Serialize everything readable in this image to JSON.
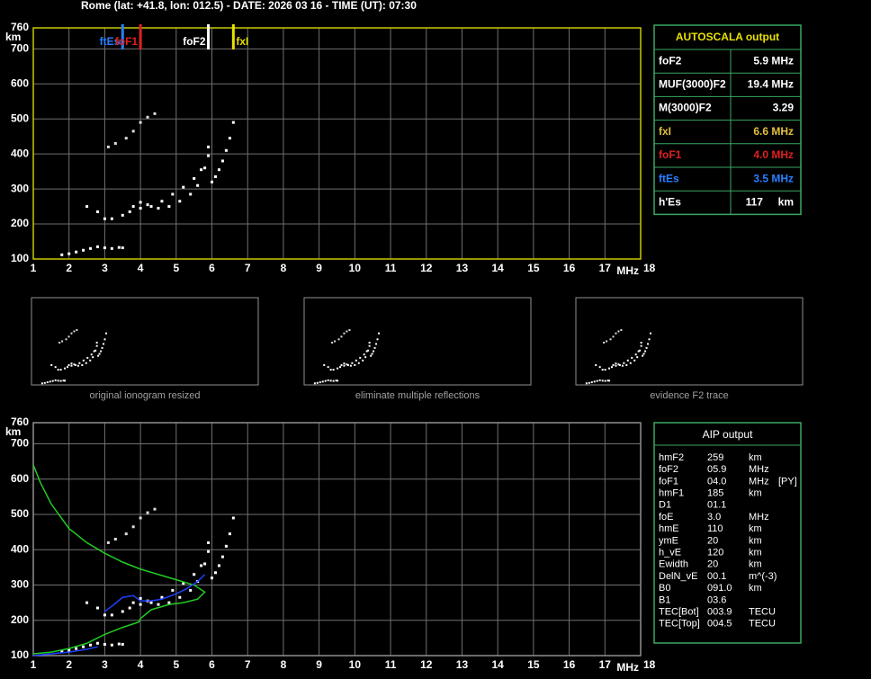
{
  "header": "Rome (lat: +41.8, lon: 012.5) - DATE: 2026 03 16 - TIME (UT): 07:30",
  "chart_data": [
    {
      "type": "scatter",
      "x_label": "MHz",
      "y_label": "km",
      "xlim": [
        1,
        18
      ],
      "ylim": [
        100,
        760
      ],
      "xticks": [
        1,
        2,
        3,
        4,
        5,
        6,
        7,
        8,
        9,
        10,
        11,
        12,
        13,
        14,
        15,
        16,
        17,
        18
      ],
      "yticks": [
        100,
        200,
        300,
        400,
        500,
        600,
        700,
        760
      ],
      "grid": true,
      "frame_color": "#c8c800",
      "markers": [
        {
          "name": "ftEs",
          "value": 3.5,
          "color": "#2a7fff"
        },
        {
          "name": "foF1",
          "value": 4.0,
          "color": "#e02020"
        },
        {
          "name": "foF2",
          "value": 5.9,
          "color": "#ffffff"
        },
        {
          "name": "fxI",
          "value": 6.6,
          "color": "#e8e000"
        }
      ],
      "series": [
        {
          "color": "#ffffff",
          "x": [
            1.8,
            2.0,
            2.2,
            2.4,
            2.6,
            2.8,
            3.0,
            3.2,
            3.4,
            3.5
          ],
          "values": [
            112,
            115,
            120,
            125,
            130,
            135,
            132,
            130,
            133,
            132
          ]
        },
        {
          "color": "#ffffff",
          "x": [
            2.5,
            2.8,
            3.0,
            3.2,
            3.5,
            3.8,
            4.0,
            4.2,
            4.5,
            4.8,
            5.1,
            5.4,
            5.6,
            5.8,
            5.9
          ],
          "values": [
            250,
            235,
            215,
            215,
            225,
            250,
            262,
            255,
            245,
            250,
            265,
            285,
            310,
            360,
            420
          ]
        },
        {
          "color": "#ffffff",
          "x": [
            3.7,
            4.0,
            4.3,
            4.6,
            4.9,
            5.2,
            5.5,
            5.7,
            5.9
          ],
          "values": [
            235,
            245,
            250,
            265,
            285,
            305,
            330,
            355,
            395
          ]
        },
        {
          "color": "#ffffff",
          "x": [
            6.0,
            6.1,
            6.2,
            6.3,
            6.4,
            6.5,
            6.6
          ],
          "values": [
            320,
            335,
            355,
            380,
            410,
            445,
            490
          ]
        },
        {
          "color": "#dddddd",
          "x": [
            3.1,
            3.3,
            3.6,
            3.8,
            4.0,
            4.2,
            4.4
          ],
          "values": [
            420,
            430,
            445,
            465,
            490,
            505,
            515
          ]
        }
      ]
    },
    {
      "type": "scatter",
      "x_label": "MHz",
      "y_label": "km",
      "xlim": [
        1,
        18
      ],
      "ylim": [
        100,
        760
      ],
      "xticks": [
        1,
        2,
        3,
        4,
        5,
        6,
        7,
        8,
        9,
        10,
        11,
        12,
        13,
        14,
        15,
        16,
        17,
        18
      ],
      "yticks": [
        100,
        200,
        300,
        400,
        500,
        600,
        700,
        760
      ],
      "grid": true,
      "frame_color": "#909090",
      "series": [
        {
          "color": "#ffffff",
          "x": [
            1.8,
            2.0,
            2.2,
            2.4,
            2.6,
            2.8,
            3.0,
            3.2,
            3.4,
            3.5
          ],
          "values": [
            112,
            115,
            120,
            125,
            130,
            135,
            132,
            130,
            133,
            132
          ]
        },
        {
          "color": "#ffffff",
          "x": [
            2.5,
            2.8,
            3.0,
            3.2,
            3.5,
            3.8,
            4.0,
            4.2,
            4.5,
            4.8,
            5.1,
            5.4,
            5.6,
            5.8,
            5.9
          ],
          "values": [
            250,
            235,
            215,
            215,
            225,
            250,
            262,
            255,
            245,
            250,
            265,
            285,
            310,
            360,
            420
          ]
        },
        {
          "color": "#ffffff",
          "x": [
            3.7,
            4.0,
            4.3,
            4.6,
            4.9,
            5.2,
            5.5,
            5.7,
            5.9
          ],
          "values": [
            235,
            245,
            250,
            265,
            285,
            305,
            330,
            355,
            395
          ]
        },
        {
          "color": "#ffffff",
          "x": [
            6.0,
            6.1,
            6.2,
            6.3,
            6.4,
            6.5,
            6.6
          ],
          "values": [
            320,
            335,
            355,
            380,
            410,
            445,
            490
          ]
        },
        {
          "color": "#dddddd",
          "x": [
            3.1,
            3.3,
            3.6,
            3.8,
            4.0,
            4.2,
            4.4
          ],
          "values": [
            420,
            430,
            445,
            465,
            490,
            505,
            515
          ]
        },
        {
          "type": "line",
          "color": "#22cc22",
          "x": [
            1.0,
            1.2,
            1.5,
            2.0,
            2.5,
            3.0,
            3.5,
            4.0,
            4.5,
            5.0,
            5.5,
            5.8,
            5.6,
            5.2,
            4.8,
            4.3,
            4.0,
            3.95,
            3.5,
            3.0,
            2.5,
            2.0,
            1.5,
            1.0
          ],
          "values": [
            640,
            590,
            530,
            460,
            420,
            390,
            365,
            345,
            330,
            315,
            300,
            280,
            260,
            250,
            245,
            230,
            205,
            195,
            180,
            160,
            135,
            120,
            110,
            105
          ]
        },
        {
          "type": "line",
          "color": "#2040ff",
          "x": [
            3.0,
            3.2,
            3.5,
            3.8,
            4.0,
            4.3,
            4.6,
            5.0,
            5.3,
            5.6,
            5.8
          ],
          "values": [
            225,
            240,
            265,
            270,
            255,
            255,
            260,
            275,
            290,
            310,
            330
          ]
        },
        {
          "type": "line",
          "color": "#2040ff",
          "x": [
            1.0,
            1.5,
            2.0,
            2.5,
            2.8
          ],
          "values": [
            100,
            105,
            110,
            118,
            125
          ]
        }
      ]
    }
  ],
  "thumbnails": [
    "original ionogram resized",
    "eliminate multiple reflections",
    "evidence F2 trace"
  ],
  "autoscala": {
    "title": "AUTOSCALA output",
    "rows": [
      {
        "label": "foF2",
        "value": "5.9 MHz",
        "color": "#ffffff"
      },
      {
        "label": "MUF(3000)F2",
        "value": "19.4 MHz",
        "color": "#ffffff"
      },
      {
        "label": "M(3000)F2",
        "value": "3.29",
        "color": "#ffffff"
      },
      {
        "label": "fxI",
        "value": "6.6 MHz",
        "color": "#e0c040"
      },
      {
        "label": "foF1",
        "value": "4.0 MHz",
        "color": "#e02020"
      },
      {
        "label": "ftEs",
        "value": "3.5 MHz",
        "color": "#2a7fff"
      },
      {
        "label": "h'Es",
        "value": "117     km",
        "color": "#ffffff"
      }
    ]
  },
  "aip": {
    "title": "AIP output",
    "rows": [
      [
        "hmF2",
        "259",
        "km"
      ],
      [
        "foF2",
        "05.9",
        "MHz"
      ],
      [
        "foF1",
        "04.0",
        "MHz",
        "[PY]"
      ],
      [
        "hmF1",
        "185",
        "km"
      ],
      [
        "D1",
        "01.1"
      ],
      [
        "foE",
        "3.0",
        "MHz"
      ],
      [
        "hmE",
        "110",
        "km"
      ],
      [
        "ymE",
        "20",
        "km"
      ],
      [
        "h_vE",
        "120",
        "km"
      ],
      [
        "Ewidth",
        "20",
        "km"
      ],
      [
        "DelN_vE",
        "00.1",
        "m^(-3)"
      ],
      [
        "B0",
        "091.0",
        "km"
      ],
      [
        "B1",
        "03.6"
      ],
      [
        "TEC[Bot]",
        "003.9",
        "TECU"
      ],
      [
        "TEC[Top]",
        "004.5",
        "TECU"
      ]
    ]
  }
}
